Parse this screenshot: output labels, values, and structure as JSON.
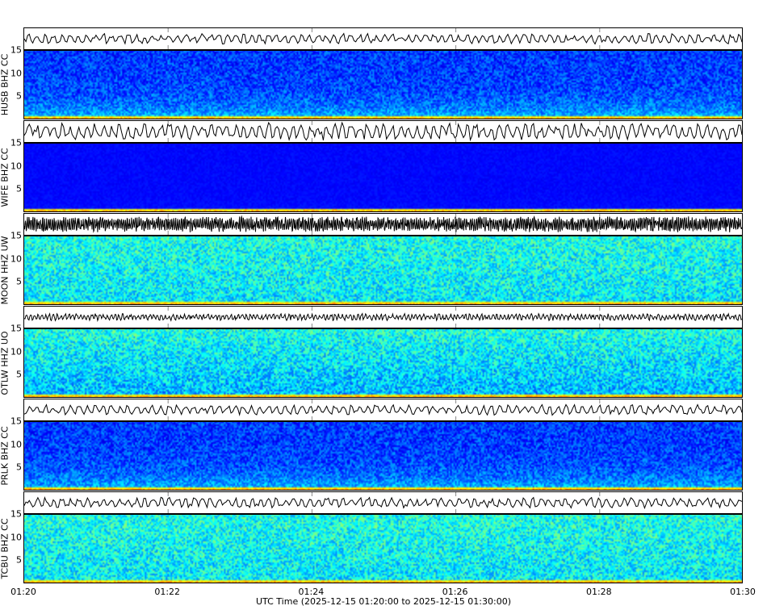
{
  "chart_data": {
    "type": "heatmap",
    "subtype": "spectrogram with waveform",
    "xlabel": "UTC Time (2025-12-15 01:20:00 to 2025-12-15 01:30:00)",
    "xticks": [
      "01:20",
      "01:22",
      "01:24",
      "01:26",
      "01:28",
      "01:30"
    ],
    "xlim": [
      "01:20",
      "01:30"
    ],
    "ylim": [
      0,
      15
    ],
    "yticks": [
      "5",
      "10",
      "15"
    ],
    "colormap": "jet",
    "panels": [
      {
        "label": "HUSB BHZ CC",
        "character": "low"
      },
      {
        "label": "WIFE BHZ CC",
        "character": "quiet"
      },
      {
        "label": "MOON HHZ UW",
        "character": "noisy"
      },
      {
        "label": "OTLW HHZ UO",
        "character": "high"
      },
      {
        "label": "PRLK BHZ CC",
        "character": "low"
      },
      {
        "label": "TCBU BHZ CC",
        "character": "noisy"
      }
    ]
  }
}
